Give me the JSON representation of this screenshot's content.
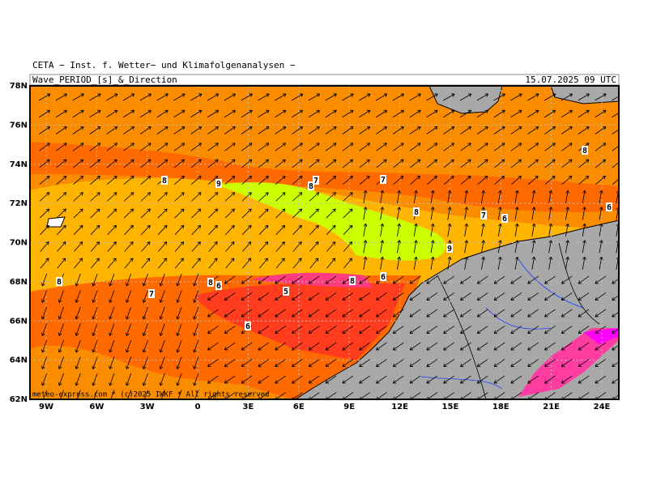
{
  "header": {
    "title": "CETA − Inst. f. Wetter− und Klimafolgenanalysen −",
    "product": "Wave_PERIOD_[s]_&_Direction",
    "date": "15.07.2025 09 UTC"
  },
  "map": {
    "lat_labels": [
      "78N",
      "76N",
      "74N",
      "72N",
      "70N",
      "68N",
      "66N",
      "64N",
      "62N"
    ],
    "lon_labels": [
      "9W",
      "6W",
      "3W",
      "0",
      "3E",
      "6E",
      "9E",
      "12E",
      "15E",
      "18E",
      "21E",
      "24E"
    ],
    "contour_labels": [
      "8",
      "9",
      "8",
      "7",
      "7",
      "8",
      "7",
      "6",
      "8",
      "6",
      "9",
      "8",
      "7",
      "8",
      "6",
      "5",
      "8",
      "6",
      "6"
    ],
    "credit": "meteo-express.com * (c)2025 IWKF * All rights reserved"
  }
}
